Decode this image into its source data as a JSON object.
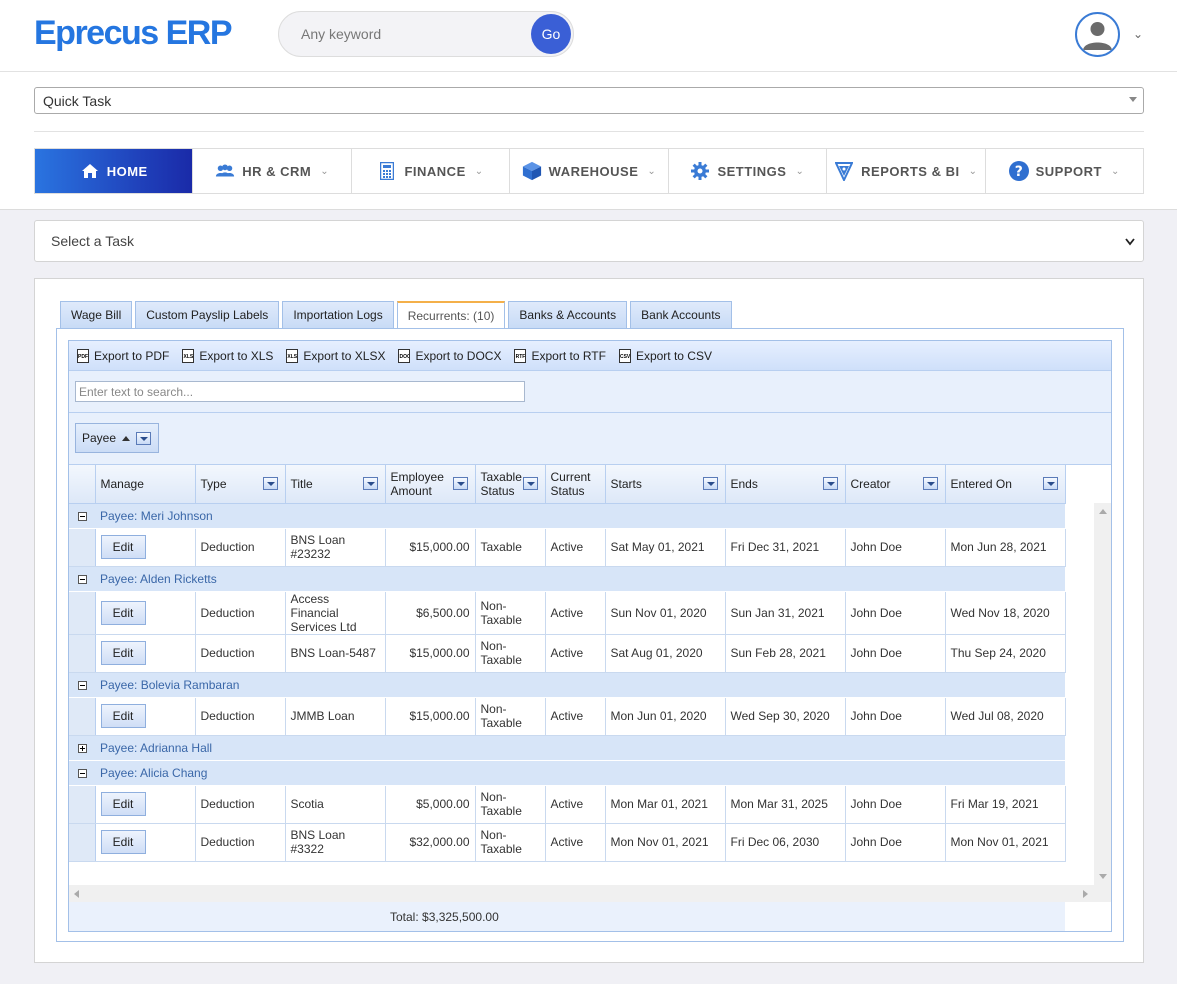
{
  "app": {
    "logo": "Eprecus ERP"
  },
  "search": {
    "placeholder": "Any keyword",
    "go_label": "Go"
  },
  "quick_task": {
    "label": "Quick Task"
  },
  "nav": [
    {
      "label": "HOME",
      "icon": "home-icon"
    },
    {
      "label": "HR & CRM",
      "icon": "users-icon"
    },
    {
      "label": "FINANCE",
      "icon": "calculator-icon"
    },
    {
      "label": "WAREHOUSE",
      "icon": "box-icon"
    },
    {
      "label": "SETTINGS",
      "icon": "gear-icon"
    },
    {
      "label": "REPORTS & BI",
      "icon": "reports-icon"
    },
    {
      "label": "SUPPORT",
      "icon": "question-icon"
    }
  ],
  "select_task": {
    "label": "Select a Task"
  },
  "tabs": [
    "Wage Bill",
    "Custom Payslip Labels",
    "Importation Logs",
    "Recurrents: (10)",
    "Banks & Accounts",
    "Bank Accounts"
  ],
  "exports": [
    {
      "label": "Export to PDF",
      "icon": "PDF"
    },
    {
      "label": "Export to XLS",
      "icon": "XLS"
    },
    {
      "label": "Export to XLSX",
      "icon": "XLSX"
    },
    {
      "label": "Export to DOCX",
      "icon": "DOCX"
    },
    {
      "label": "Export to RTF",
      "icon": "RTF"
    },
    {
      "label": "Export to CSV",
      "icon": "CSV"
    }
  ],
  "grid_search": {
    "placeholder": "Enter text to search..."
  },
  "group_chip": {
    "label": "Payee"
  },
  "columns": {
    "manage": "Manage",
    "type": "Type",
    "title": "Title",
    "amount_l1": "Employee",
    "amount_l2": "Amount",
    "taxable_l1": "Taxable",
    "taxable_l2": "Status",
    "current_l1": "Current",
    "current_l2": "Status",
    "starts": "Starts",
    "ends": "Ends",
    "creator": "Creator",
    "entered": "Entered On"
  },
  "edit_label": "Edit",
  "groups": [
    {
      "label": "Payee: Meri Johnson",
      "expanded": true,
      "rows": [
        {
          "type": "Deduction",
          "title_l1": "BNS Loan",
          "title_l2": "#23232",
          "amount": "$15,000.00",
          "tax_l1": "Taxable",
          "tax_l2": "",
          "status": "Active",
          "starts": "Sat May 01, 2021",
          "ends": "Fri Dec 31, 2021",
          "creator": "John Doe",
          "entered": "Mon Jun 28, 2021"
        }
      ]
    },
    {
      "label": "Payee: Alden Ricketts",
      "expanded": true,
      "rows": [
        {
          "type": "Deduction",
          "title_l1": "Access Financial",
          "title_l2": "Services Ltd",
          "amount": "$6,500.00",
          "tax_l1": "Non-",
          "tax_l2": "Taxable",
          "status": "Active",
          "starts": "Sun Nov 01, 2020",
          "ends": "Sun Jan 31, 2021",
          "creator": "John Doe",
          "entered": "Wed Nov 18, 2020"
        },
        {
          "type": "Deduction",
          "title_l1": "BNS Loan-5487",
          "title_l2": "",
          "amount": "$15,000.00",
          "tax_l1": "Non-",
          "tax_l2": "Taxable",
          "status": "Active",
          "starts": "Sat Aug 01, 2020",
          "ends": "Sun Feb 28, 2021",
          "creator": "John Doe",
          "entered": "Thu Sep 24, 2020"
        }
      ]
    },
    {
      "label": "Payee: Bolevia Rambaran",
      "expanded": true,
      "rows": [
        {
          "type": "Deduction",
          "title_l1": "JMMB Loan",
          "title_l2": "",
          "amount": "$15,000.00",
          "tax_l1": "Non-",
          "tax_l2": "Taxable",
          "status": "Active",
          "starts": "Mon Jun 01, 2020",
          "ends": "Wed Sep 30, 2020",
          "creator": "John Doe",
          "entered": "Wed Jul 08, 2020"
        }
      ]
    },
    {
      "label": "Payee: Adrianna Hall",
      "expanded": false,
      "rows": []
    },
    {
      "label": "Payee: Alicia Chang",
      "expanded": true,
      "rows": [
        {
          "type": "Deduction",
          "title_l1": "Scotia",
          "title_l2": "",
          "amount": "$5,000.00",
          "tax_l1": "Non-",
          "tax_l2": "Taxable",
          "status": "Active",
          "starts": "Mon Mar 01, 2021",
          "ends": "Mon Mar 31, 2025",
          "creator": "John Doe",
          "entered": "Fri Mar 19, 2021"
        },
        {
          "type": "Deduction",
          "title_l1": "BNS Loan",
          "title_l2": "#3322",
          "amount": "$32,000.00",
          "tax_l1": "Non-",
          "tax_l2": "Taxable",
          "status": "Active",
          "starts": "Mon Nov 01, 2021",
          "ends": "Fri Dec 06, 2030",
          "creator": "John Doe",
          "entered": "Mon Nov 01, 2021"
        }
      ]
    }
  ],
  "total": "Total: $3,325,500.00"
}
